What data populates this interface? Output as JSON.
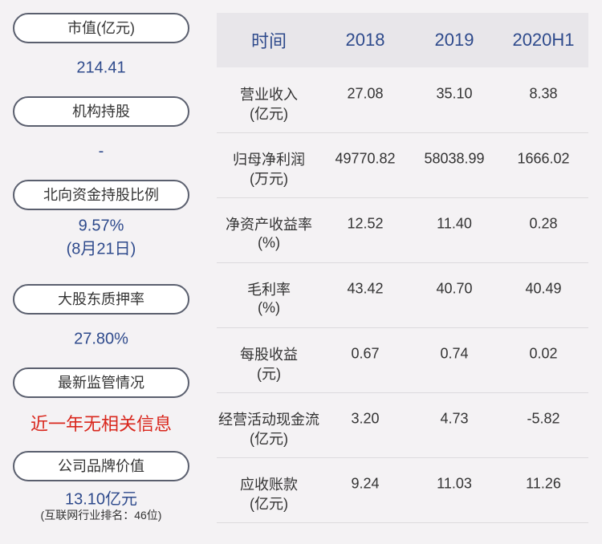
{
  "left": [
    {
      "label": "市值(亿元)",
      "value": "214.41"
    },
    {
      "label": "机构持股",
      "value": "-"
    },
    {
      "label": "北向资金持股比例",
      "value": "9.57%",
      "note": "(8月21日)"
    },
    {
      "label": "大股东质押率",
      "value": "27.80%"
    },
    {
      "label": "最新监管情况",
      "value": "近一年无相关信息"
    },
    {
      "label": "公司品牌价值",
      "value": "13.10亿元",
      "note": "(互联网行业排名：46位)"
    }
  ],
  "table": {
    "header": [
      "时间",
      "2018",
      "2019",
      "2020H1"
    ],
    "rows": [
      {
        "label": "营业收入",
        "unit": "(亿元)",
        "values": [
          "27.08",
          "35.10",
          "8.38"
        ]
      },
      {
        "label": "归母净利润",
        "unit": "(万元)",
        "values": [
          "49770.82",
          "58038.99",
          "1666.02"
        ]
      },
      {
        "label": "净资产收益率",
        "unit": "(%)",
        "values": [
          "12.52",
          "11.40",
          "0.28"
        ]
      },
      {
        "label": "毛利率",
        "unit": "(%)",
        "values": [
          "43.42",
          "40.70",
          "40.49"
        ]
      },
      {
        "label": "每股收益",
        "unit": "(元)",
        "values": [
          "0.67",
          "0.74",
          "0.02"
        ]
      },
      {
        "label": "经营活动现金流",
        "unit": "(亿元)",
        "values": [
          "3.20",
          "4.73",
          "-5.82"
        ]
      },
      {
        "label": "应收账款",
        "unit": "(亿元)",
        "values": [
          "9.24",
          "11.03",
          "11.26"
        ]
      }
    ]
  }
}
